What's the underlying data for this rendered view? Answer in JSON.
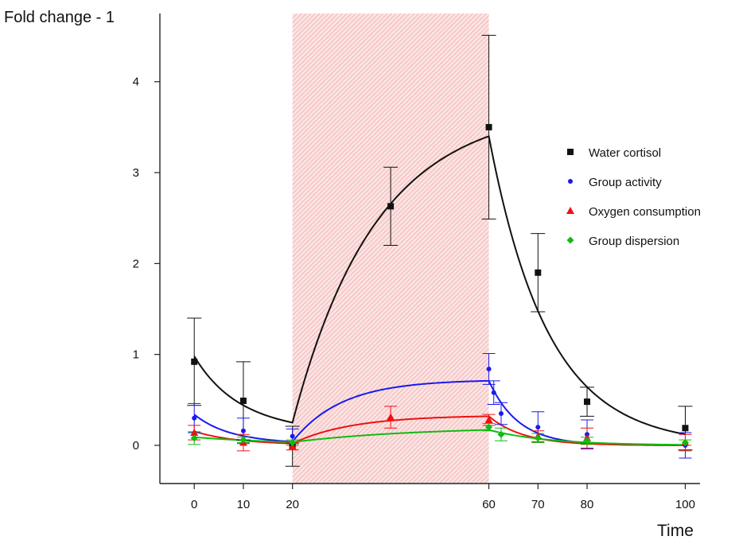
{
  "chart_data": {
    "type": "scatter",
    "title": "",
    "xlabel": "Time",
    "ylabel": "Fold change - 1",
    "x_ticks": [
      0,
      10,
      20,
      60,
      70,
      80,
      100
    ],
    "y_ticks": [
      0,
      1,
      2,
      3,
      4
    ],
    "xlim": [
      -7,
      103
    ],
    "ylim": [
      -0.42,
      4.75
    ],
    "shaded_region": {
      "x": [
        20,
        60
      ],
      "color": "#f3b6b6"
    },
    "grid": false,
    "legend_position": "right",
    "series": [
      {
        "name": "Water cortisol",
        "color": "#111111",
        "marker": "square",
        "points": [
          {
            "x": 0,
            "y": 0.92,
            "err": 0.48
          },
          {
            "x": 10,
            "y": 0.49,
            "err": 0.43
          },
          {
            "x": 20,
            "y": -0.01,
            "err": 0.22
          },
          {
            "x": 40,
            "y": 2.63,
            "err": 0.43
          },
          {
            "x": 60,
            "y": 3.5,
            "err": 1.01
          },
          {
            "x": 70,
            "y": 1.9,
            "err": 0.43
          },
          {
            "x": 80,
            "y": 0.48,
            "err": 0.16
          },
          {
            "x": 100,
            "y": 0.19,
            "err": 0.24
          }
        ],
        "fit": {
          "baseline": 0.98,
          "start_level": 0.25,
          "end_level": 3.4,
          "tau_decay1": 8.5,
          "tau_rise": 17.0,
          "tau_decay2": 12.0
        }
      },
      {
        "name": "Group activity",
        "color": "#1a1aee",
        "marker": "circle",
        "points": [
          {
            "x": 0,
            "y": 0.3,
            "err": 0.16
          },
          {
            "x": 10,
            "y": 0.16,
            "err": 0.14
          },
          {
            "x": 20,
            "y": 0.1,
            "err": 0.08
          },
          {
            "x": 60,
            "y": 0.84,
            "err": 0.17
          },
          {
            "x": 61,
            "y": 0.58,
            "err": 0.13
          },
          {
            "x": 62.5,
            "y": 0.35,
            "err": 0.12
          },
          {
            "x": 70,
            "y": 0.2,
            "err": 0.17
          },
          {
            "x": 80,
            "y": 0.12,
            "err": 0.16
          },
          {
            "x": 100,
            "y": 0.0,
            "err": 0.14
          }
        ],
        "fit": {
          "baseline": 0.34,
          "start_level": 0.04,
          "end_level": 0.71,
          "tau_decay1": 7.0,
          "tau_rise": 10.0,
          "tau_decay2": 6.0
        }
      },
      {
        "name": "Oxygen consumption",
        "color": "#ee1111",
        "marker": "triangle",
        "points": [
          {
            "x": 0,
            "y": 0.14,
            "err": 0.08
          },
          {
            "x": 10,
            "y": 0.03,
            "err": 0.09
          },
          {
            "x": 20,
            "y": -0.01,
            "err": 0.04
          },
          {
            "x": 40,
            "y": 0.31,
            "err": 0.12
          },
          {
            "x": 60,
            "y": 0.28,
            "err": 0.06
          },
          {
            "x": 70,
            "y": 0.1,
            "err": 0.06
          },
          {
            "x": 80,
            "y": 0.08,
            "err": 0.11
          },
          {
            "x": 100,
            "y": 0.03,
            "err": 0.09
          }
        ],
        "fit": {
          "baseline": 0.155,
          "start_level": 0.02,
          "end_level": 0.32,
          "tau_decay1": 8.0,
          "tau_rise": 12.0,
          "tau_decay2": 7.0
        }
      },
      {
        "name": "Group dispersion",
        "color": "#11bb11",
        "marker": "diamond",
        "points": [
          {
            "x": 0,
            "y": 0.08,
            "err": 0.07
          },
          {
            "x": 10,
            "y": 0.06,
            "err": 0.03
          },
          {
            "x": 20,
            "y": 0.03,
            "err": 0.03
          },
          {
            "x": 60,
            "y": 0.2,
            "err": 0.04
          },
          {
            "x": 62.5,
            "y": 0.12,
            "err": 0.07
          },
          {
            "x": 70,
            "y": 0.08,
            "err": 0.05
          },
          {
            "x": 80,
            "y": 0.05,
            "err": 0.04
          },
          {
            "x": 100,
            "y": 0.03,
            "err": 0.03
          }
        ],
        "fit": {
          "baseline": 0.09,
          "start_level": 0.035,
          "end_level": 0.17,
          "tau_decay1": 15.0,
          "tau_rise": 25.0,
          "tau_decay2": 12.0
        }
      }
    ]
  }
}
